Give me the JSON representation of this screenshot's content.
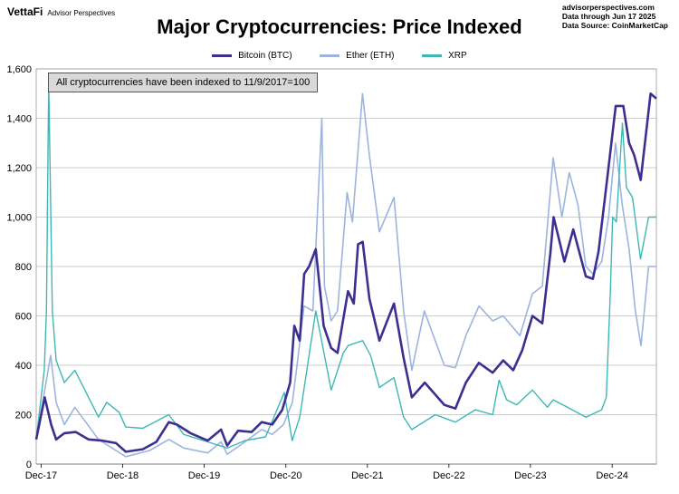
{
  "brand": {
    "name": "VettaFi",
    "sub": "Advisor Perspectives"
  },
  "source_lines": [
    "advisorperspectives.com",
    "Data through Jun 17 2025",
    "Data Source: CoinMarketCap"
  ],
  "annotation": "All cryptocurrencies have been indexed to 11/9/2017=100",
  "chart_data": {
    "type": "line",
    "title": "Major Cryptocurrencies: Price Indexed",
    "xlabel": "",
    "ylabel": "",
    "ylim": [
      0,
      1600
    ],
    "yticks": [
      0,
      200,
      400,
      600,
      800,
      1000,
      1200,
      1400,
      1600
    ],
    "ytick_labels": [
      "0",
      "200",
      "400",
      "600",
      "800",
      "1,000",
      "1,200",
      "1,400",
      "1,600"
    ],
    "xlim": [
      "2017-11-09",
      "2025-06-17"
    ],
    "xticks": [
      "2017-12-01",
      "2018-12-01",
      "2019-12-01",
      "2020-12-01",
      "2021-12-01",
      "2022-12-01",
      "2023-12-01",
      "2024-12-01"
    ],
    "xtick_labels": [
      "Dec-17",
      "Dec-18",
      "Dec-19",
      "Dec-20",
      "Dec-21",
      "Dec-22",
      "Dec-23",
      "Dec-24"
    ],
    "grid": "horizontal",
    "legend_position": "top-center",
    "series": [
      {
        "name": "Bitcoin (BTC)",
        "color": "#3d2f8f",
        "x": [
          "2017-11-09",
          "2017-12-17",
          "2018-01-15",
          "2018-02-06",
          "2018-03-15",
          "2018-05-05",
          "2018-07-01",
          "2018-09-01",
          "2018-11-01",
          "2018-12-15",
          "2019-03-01",
          "2019-05-01",
          "2019-06-26",
          "2019-08-01",
          "2019-10-01",
          "2019-12-17",
          "2020-02-15",
          "2020-03-13",
          "2020-05-01",
          "2020-07-01",
          "2020-08-15",
          "2020-10-01",
          "2020-11-15",
          "2020-12-20",
          "2021-01-08",
          "2021-02-01",
          "2021-02-21",
          "2021-03-15",
          "2021-04-14",
          "2021-05-19",
          "2021-06-22",
          "2021-07-20",
          "2021-09-05",
          "2021-10-01",
          "2021-10-20",
          "2021-11-10",
          "2021-12-10",
          "2022-01-24",
          "2022-03-30",
          "2022-05-12",
          "2022-06-18",
          "2022-08-15",
          "2022-11-10",
          "2022-12-30",
          "2023-02-15",
          "2023-04-14",
          "2023-06-15",
          "2023-08-01",
          "2023-09-15",
          "2023-10-25",
          "2023-12-10",
          "2024-01-23",
          "2024-02-28",
          "2024-03-14",
          "2024-05-01",
          "2024-06-10",
          "2024-08-05",
          "2024-09-06",
          "2024-10-01",
          "2024-11-12",
          "2024-12-17",
          "2025-01-20",
          "2025-02-15",
          "2025-03-10",
          "2025-04-08",
          "2025-05-22",
          "2025-06-17"
        ],
        "values": [
          100,
          270,
          160,
          100,
          125,
          130,
          100,
          95,
          85,
          50,
          60,
          90,
          170,
          160,
          125,
          95,
          140,
          75,
          135,
          130,
          170,
          160,
          220,
          330,
          560,
          500,
          770,
          800,
          870,
          560,
          470,
          450,
          700,
          650,
          890,
          900,
          670,
          500,
          650,
          430,
          270,
          330,
          240,
          225,
          330,
          410,
          370,
          420,
          380,
          460,
          600,
          570,
          850,
          1000,
          820,
          950,
          760,
          750,
          860,
          1180,
          1450,
          1450,
          1300,
          1250,
          1150,
          1500,
          1480
        ]
      },
      {
        "name": "Ether (ETH)",
        "color": "#9db4df",
        "x": [
          "2017-11-09",
          "2018-01-13",
          "2018-02-06",
          "2018-03-15",
          "2018-05-01",
          "2018-08-15",
          "2018-12-15",
          "2019-04-01",
          "2019-06-26",
          "2019-09-01",
          "2019-12-17",
          "2020-02-15",
          "2020-03-13",
          "2020-05-01",
          "2020-08-15",
          "2020-10-01",
          "2020-11-20",
          "2020-12-30",
          "2021-01-20",
          "2021-02-20",
          "2021-04-01",
          "2021-05-11",
          "2021-05-23",
          "2021-06-22",
          "2021-07-20",
          "2021-09-01",
          "2021-09-25",
          "2021-11-09",
          "2021-12-10",
          "2022-01-24",
          "2022-03-30",
          "2022-05-12",
          "2022-06-18",
          "2022-08-13",
          "2022-11-10",
          "2022-12-30",
          "2023-02-15",
          "2023-04-15",
          "2023-06-15",
          "2023-08-01",
          "2023-10-15",
          "2023-12-10",
          "2024-01-23",
          "2024-03-12",
          "2024-04-20",
          "2024-05-23",
          "2024-07-01",
          "2024-08-05",
          "2024-09-06",
          "2024-10-15",
          "2024-11-15",
          "2024-12-16",
          "2025-01-15",
          "2025-02-15",
          "2025-03-15",
          "2025-04-09",
          "2025-05-13",
          "2025-06-17"
        ],
        "values": [
          100,
          440,
          250,
          160,
          230,
          100,
          30,
          55,
          100,
          65,
          45,
          90,
          40,
          70,
          140,
          120,
          160,
          250,
          400,
          640,
          620,
          1400,
          720,
          580,
          620,
          1100,
          980,
          1500,
          1250,
          940,
          1080,
          620,
          380,
          620,
          400,
          390,
          520,
          640,
          580,
          600,
          520,
          690,
          720,
          1240,
          1000,
          1180,
          1050,
          800,
          770,
          820,
          1000,
          1300,
          1050,
          870,
          620,
          480,
          800,
          800
        ]
      },
      {
        "name": "XRP",
        "color": "#3eb7b5",
        "x": [
          "2017-11-09",
          "2017-12-15",
          "2017-12-25",
          "2018-01-04",
          "2018-01-20",
          "2018-02-06",
          "2018-03-15",
          "2018-05-01",
          "2018-08-15",
          "2018-09-21",
          "2018-11-15",
          "2018-12-15",
          "2019-03-01",
          "2019-06-26",
          "2019-09-01",
          "2019-12-17",
          "2020-03-13",
          "2020-06-01",
          "2020-09-01",
          "2020-11-24",
          "2020-12-29",
          "2021-02-01",
          "2021-04-14",
          "2021-05-23",
          "2021-06-22",
          "2021-08-15",
          "2021-09-06",
          "2021-11-10",
          "2021-12-15",
          "2022-01-24",
          "2022-03-30",
          "2022-05-12",
          "2022-06-18",
          "2022-10-01",
          "2022-12-30",
          "2023-03-29",
          "2023-06-15",
          "2023-07-14",
          "2023-08-17",
          "2023-10-01",
          "2023-12-10",
          "2024-02-15",
          "2024-03-12",
          "2024-05-15",
          "2024-08-05",
          "2024-10-15",
          "2024-11-05",
          "2024-11-23",
          "2024-12-03",
          "2024-12-20",
          "2025-01-16",
          "2025-02-03",
          "2025-03-02",
          "2025-04-07",
          "2025-05-13",
          "2025-06-17"
        ],
        "values": [
          100,
          380,
          620,
          1550,
          620,
          420,
          330,
          380,
          190,
          250,
          210,
          150,
          145,
          200,
          120,
          90,
          65,
          95,
          110,
          290,
          95,
          190,
          620,
          440,
          300,
          450,
          480,
          500,
          440,
          310,
          350,
          190,
          140,
          200,
          170,
          220,
          200,
          340,
          260,
          240,
          300,
          230,
          260,
          230,
          190,
          220,
          270,
          700,
          1000,
          980,
          1380,
          1120,
          1080,
          830,
          1000,
          1000
        ]
      }
    ]
  }
}
